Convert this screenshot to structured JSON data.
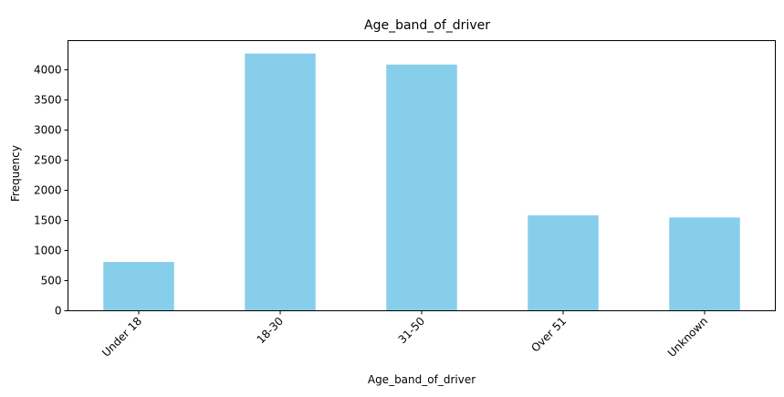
{
  "chart_data": {
    "type": "bar",
    "title": "Age_band_of_driver",
    "xlabel": "Age_band_of_driver",
    "ylabel": "Frequency",
    "categories": [
      "Under 18",
      "18-30",
      "31-50",
      "Over 51",
      "Unknown"
    ],
    "values": [
      810,
      4271,
      4087,
      1585,
      1548
    ],
    "ylim": [
      0,
      4485
    ],
    "yticks": [
      0,
      500,
      1000,
      1500,
      2000,
      2500,
      3000,
      3500,
      4000
    ],
    "bar_color": "#87CEEB",
    "grid": false,
    "legend": "none"
  }
}
